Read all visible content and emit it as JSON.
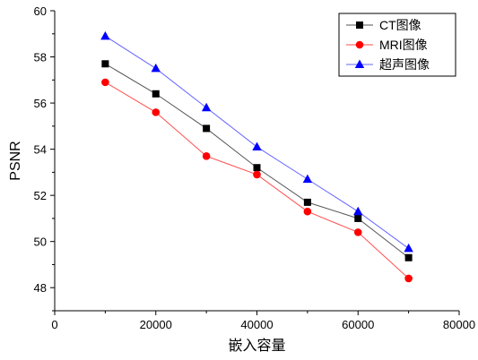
{
  "chart_data": {
    "type": "line",
    "xlabel": "嵌入容量",
    "ylabel": "PSNR",
    "xlim": [
      0,
      80000
    ],
    "ylim": [
      47,
      60
    ],
    "xticks": [
      "0",
      "20000",
      "40000",
      "60000",
      "80000"
    ],
    "yticks": [
      "48",
      "50",
      "52",
      "54",
      "56",
      "58",
      "60"
    ],
    "x": [
      10000,
      20000,
      30000,
      40000,
      50000,
      60000,
      70000
    ],
    "series": [
      {
        "name": "CT图像",
        "marker": "square",
        "color": "#000000",
        "line_color": "#555555",
        "values": [
          57.7,
          56.4,
          54.9,
          53.2,
          51.7,
          51.0,
          49.3
        ]
      },
      {
        "name": "MRI图像",
        "marker": "circle",
        "color": "#ff0000",
        "line_color": "#ff4d4d",
        "values": [
          56.9,
          55.6,
          53.7,
          52.9,
          51.3,
          50.4,
          48.4
        ]
      },
      {
        "name": "超声图像",
        "marker": "triangle",
        "color": "#0000ff",
        "line_color": "#6666ff",
        "values": [
          58.9,
          57.5,
          55.8,
          54.1,
          52.7,
          51.3,
          49.7
        ]
      }
    ],
    "legend": "top-right",
    "grid": false
  }
}
